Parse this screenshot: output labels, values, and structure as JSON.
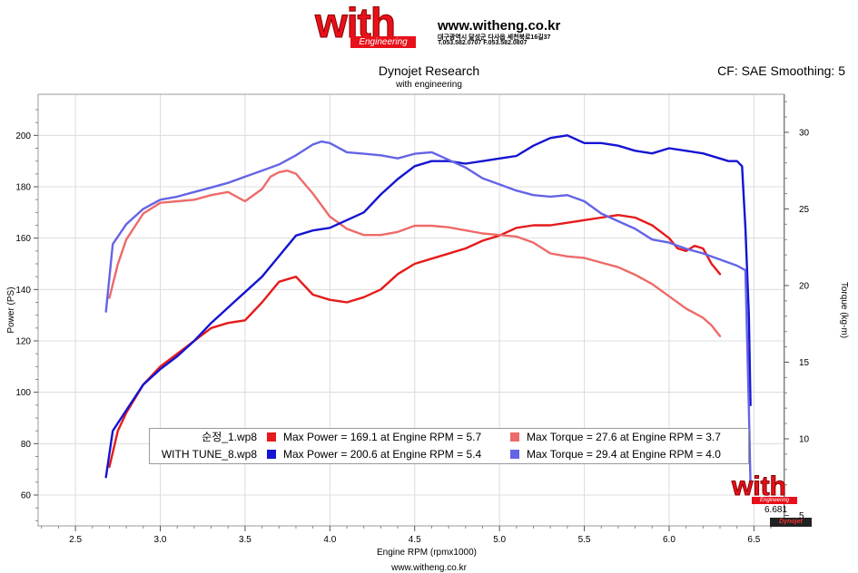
{
  "header": {
    "logo_text": "with",
    "logo_sub": "Engineering",
    "url": "www.witheng.co.kr",
    "address": "대구광역시 달성군 다사읍 세천북로16길37",
    "tel": "T.053.582.0707 F.053.582.0807"
  },
  "footer": {
    "url": "www.witheng.co.kr"
  },
  "watermark": {
    "logo_text": "with",
    "logo_sub": "Engineering",
    "value": "6.681",
    "mark": "Dynojet"
  },
  "colors": {
    "stock_power": "#e61b1b",
    "stock_torque": "#ee6a6a",
    "tune_power": "#1414d2",
    "tune_torque": "#6464e6",
    "cursor": "#555555",
    "grid": "#dcdcdc"
  },
  "chart_data": {
    "type": "line",
    "title": "Dynojet Research",
    "subtitle": "with engineering",
    "corner_label": "CF: SAE Smoothing: 5",
    "xlabel": "Engine RPM (rpmx1000)",
    "ylabel": "Power (PS)",
    "y2label": "Torque (kg-m)",
    "xlim": [
      2.28,
      6.68
    ],
    "ylim": [
      48,
      216
    ],
    "y2lim": [
      4.32,
      32.48
    ],
    "xticks": [
      2.5,
      3.0,
      3.5,
      4.0,
      4.5,
      5.0,
      5.5,
      6.0,
      6.5
    ],
    "xtick_labels": [
      "2.5",
      "3.0",
      "3.5",
      "4.0",
      "4.5",
      "5.0",
      "5.5",
      "6.0",
      "6.5"
    ],
    "yticks": [
      60,
      80,
      100,
      120,
      140,
      160,
      180,
      200
    ],
    "ytick_labels": [
      "60",
      "80",
      "100",
      "120",
      "140",
      "160",
      "180",
      "200"
    ],
    "y2ticks": [
      5,
      10,
      15,
      20,
      25,
      30
    ],
    "y2tick_labels": [
      "5",
      "10",
      "15",
      "20",
      "25",
      "30"
    ],
    "grid": true,
    "cursor_rpm": 6.68,
    "legend_placement": "bottom-center",
    "series": [
      {
        "name": "순정_1.wp8",
        "metric": "Power",
        "axis": "left",
        "summary": "Max Power = 169.1 at Engine RPM = 5.7",
        "x": [
          2.7,
          2.75,
          2.8,
          2.9,
          3.0,
          3.1,
          3.2,
          3.3,
          3.4,
          3.5,
          3.6,
          3.7,
          3.8,
          3.9,
          4.0,
          4.1,
          4.2,
          4.3,
          4.4,
          4.5,
          4.6,
          4.7,
          4.8,
          4.9,
          5.0,
          5.1,
          5.2,
          5.3,
          5.4,
          5.5,
          5.6,
          5.7,
          5.8,
          5.9,
          6.0,
          6.05,
          6.1,
          6.15,
          6.2,
          6.25,
          6.3
        ],
        "y": [
          71,
          85,
          92,
          103,
          110,
          115,
          120,
          125,
          127,
          128,
          135,
          143,
          145,
          138,
          136,
          135,
          137,
          140,
          146,
          150,
          152,
          154,
          156,
          159,
          161,
          164,
          165,
          165,
          166,
          167,
          168,
          169,
          168,
          165,
          160,
          156,
          155,
          157,
          156,
          150,
          146
        ]
      },
      {
        "name": "순정_1.wp8",
        "metric": "Torque",
        "axis": "right",
        "summary": "Max Torque = 27.6 at Engine RPM = 3.7",
        "x": [
          2.7,
          2.75,
          2.8,
          2.9,
          3.0,
          3.1,
          3.2,
          3.3,
          3.4,
          3.5,
          3.6,
          3.65,
          3.7,
          3.75,
          3.8,
          3.9,
          4.0,
          4.1,
          4.2,
          4.3,
          4.4,
          4.5,
          4.6,
          4.7,
          4.8,
          4.9,
          5.0,
          5.1,
          5.2,
          5.3,
          5.4,
          5.5,
          5.6,
          5.7,
          5.8,
          5.9,
          6.0,
          6.1,
          6.2,
          6.25,
          6.3
        ],
        "y": [
          19.2,
          21.4,
          23.0,
          24.7,
          25.4,
          25.5,
          25.6,
          25.9,
          26.1,
          25.5,
          26.3,
          27.1,
          27.4,
          27.5,
          27.3,
          26.0,
          24.5,
          23.7,
          23.3,
          23.3,
          23.5,
          23.9,
          23.9,
          23.8,
          23.6,
          23.4,
          23.3,
          23.2,
          22.8,
          22.1,
          21.9,
          21.8,
          21.5,
          21.2,
          20.7,
          20.1,
          19.3,
          18.5,
          17.9,
          17.4,
          16.7
        ]
      },
      {
        "name": "WITH TUNE_8.wp8",
        "metric": "Power",
        "axis": "left",
        "summary": "Max Power = 200.6 at Engine RPM = 5.4",
        "x": [
          2.68,
          2.72,
          2.8,
          2.9,
          3.0,
          3.1,
          3.2,
          3.3,
          3.4,
          3.5,
          3.6,
          3.7,
          3.8,
          3.9,
          4.0,
          4.1,
          4.2,
          4.3,
          4.4,
          4.5,
          4.6,
          4.7,
          4.8,
          4.9,
          5.0,
          5.1,
          5.2,
          5.3,
          5.4,
          5.5,
          5.6,
          5.7,
          5.8,
          5.9,
          6.0,
          6.1,
          6.2,
          6.3,
          6.35,
          6.4,
          6.43,
          6.45,
          6.47,
          6.48
        ],
        "y": [
          67,
          85,
          93,
          103,
          109,
          114,
          120,
          127,
          133,
          139,
          145,
          153,
          161,
          163,
          164,
          167,
          170,
          177,
          183,
          188,
          190,
          190,
          189,
          190,
          191,
          192,
          196,
          199,
          200,
          197,
          197,
          196,
          194,
          193,
          195,
          194,
          193,
          191,
          190,
          190,
          188,
          164,
          130,
          95
        ]
      },
      {
        "name": "WITH TUNE_8.wp8",
        "metric": "Torque",
        "axis": "right",
        "summary": "Max Torque = 29.4 at Engine RPM = 4.0",
        "x": [
          2.68,
          2.72,
          2.8,
          2.9,
          3.0,
          3.1,
          3.2,
          3.3,
          3.4,
          3.5,
          3.6,
          3.7,
          3.8,
          3.9,
          3.95,
          4.0,
          4.1,
          4.2,
          4.3,
          4.4,
          4.5,
          4.6,
          4.7,
          4.8,
          4.9,
          5.0,
          5.1,
          5.2,
          5.3,
          5.4,
          5.5,
          5.6,
          5.7,
          5.8,
          5.9,
          6.0,
          6.1,
          6.2,
          6.3,
          6.4,
          6.45,
          6.47,
          6.48
        ],
        "y": [
          18.3,
          22.7,
          24.0,
          25.0,
          25.6,
          25.8,
          26.1,
          26.4,
          26.7,
          27.1,
          27.5,
          27.9,
          28.5,
          29.2,
          29.4,
          29.3,
          28.7,
          28.6,
          28.5,
          28.3,
          28.6,
          28.7,
          28.2,
          27.7,
          27.0,
          26.6,
          26.2,
          25.9,
          25.8,
          25.9,
          25.5,
          24.7,
          24.2,
          23.7,
          23.0,
          22.8,
          22.4,
          22.1,
          21.7,
          21.3,
          21.0,
          12.0,
          7.0
        ]
      }
    ]
  }
}
